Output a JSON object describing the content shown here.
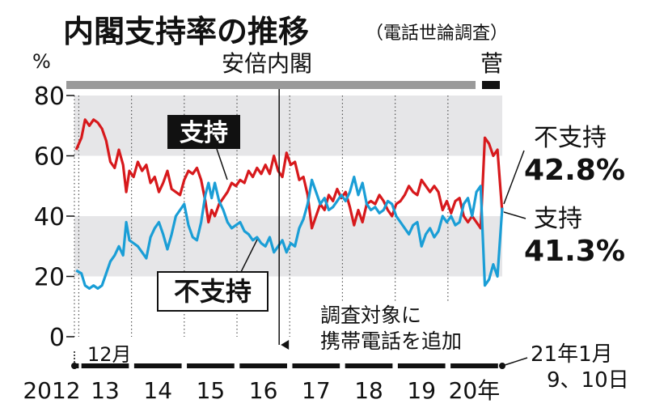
{
  "header": {
    "title": "内閣支持率の推移",
    "subtitle": "（電話世論調査）"
  },
  "chart_data": {
    "type": "line",
    "title": "内閣支持率の推移",
    "subtitle": "（電話世論調査）",
    "ylabel": "%",
    "ylim": [
      0,
      80
    ],
    "yticks": [
      0,
      20,
      40,
      60,
      80
    ],
    "xlim": [
      2012.917,
      2021.03
    ],
    "x_tick_labels": [
      {
        "x": 2012.917,
        "label": "2012"
      },
      {
        "x": 2013.5,
        "label": "13"
      },
      {
        "x": 2014.5,
        "label": "14"
      },
      {
        "x": 2015.5,
        "label": "15"
      },
      {
        "x": 2016.5,
        "label": "16"
      },
      {
        "x": 2017.5,
        "label": "17"
      },
      {
        "x": 2018.5,
        "label": "18"
      },
      {
        "x": 2019.5,
        "label": "19"
      },
      {
        "x": 2020.5,
        "label": "20年"
      }
    ],
    "start_note": "12月",
    "end_note": "21年1月\n9、10日",
    "eras": [
      {
        "label": "安倍内閣",
        "from": 2012.917,
        "to": 2020.7
      },
      {
        "label": "菅",
        "from": 2020.72,
        "to": 2021.03
      }
    ],
    "annotation": "調査対象に\n携帯電話を追加",
    "annotation_x": 2016.8,
    "series": [
      {
        "name": "支持",
        "color": "#d7191c",
        "end_value_label": "41.3%",
        "points": [
          [
            2012.95,
            62
          ],
          [
            2013.05,
            66
          ],
          [
            2013.12,
            72
          ],
          [
            2013.2,
            70
          ],
          [
            2013.28,
            72
          ],
          [
            2013.36,
            71
          ],
          [
            2013.44,
            69
          ],
          [
            2013.52,
            65
          ],
          [
            2013.6,
            58
          ],
          [
            2013.68,
            56
          ],
          [
            2013.76,
            62
          ],
          [
            2013.84,
            57
          ],
          [
            2013.9,
            48
          ],
          [
            2013.96,
            55
          ],
          [
            2014.04,
            53
          ],
          [
            2014.12,
            58
          ],
          [
            2014.2,
            55
          ],
          [
            2014.28,
            57
          ],
          [
            2014.36,
            51
          ],
          [
            2014.44,
            53
          ],
          [
            2014.52,
            48
          ],
          [
            2014.6,
            51
          ],
          [
            2014.68,
            55
          ],
          [
            2014.76,
            49
          ],
          [
            2014.84,
            48
          ],
          [
            2014.92,
            47
          ],
          [
            2015.0,
            52
          ],
          [
            2015.08,
            55
          ],
          [
            2015.16,
            54
          ],
          [
            2015.24,
            56
          ],
          [
            2015.32,
            52
          ],
          [
            2015.4,
            45
          ],
          [
            2015.46,
            38
          ],
          [
            2015.52,
            42
          ],
          [
            2015.58,
            40
          ],
          [
            2015.66,
            44
          ],
          [
            2015.74,
            46
          ],
          [
            2015.82,
            48
          ],
          [
            2015.9,
            51
          ],
          [
            2015.98,
            50
          ],
          [
            2016.06,
            52
          ],
          [
            2016.14,
            51
          ],
          [
            2016.22,
            55
          ],
          [
            2016.3,
            53
          ],
          [
            2016.38,
            56
          ],
          [
            2016.46,
            54
          ],
          [
            2016.54,
            57
          ],
          [
            2016.62,
            54
          ],
          [
            2016.7,
            60
          ],
          [
            2016.78,
            55
          ],
          [
            2016.86,
            53
          ],
          [
            2016.94,
            61
          ],
          [
            2017.02,
            57
          ],
          [
            2017.1,
            58
          ],
          [
            2017.18,
            52
          ],
          [
            2017.26,
            53
          ],
          [
            2017.34,
            47
          ],
          [
            2017.42,
            36
          ],
          [
            2017.5,
            40
          ],
          [
            2017.58,
            44
          ],
          [
            2017.66,
            42
          ],
          [
            2017.74,
            47
          ],
          [
            2017.82,
            45
          ],
          [
            2017.9,
            49
          ],
          [
            2017.98,
            46
          ],
          [
            2018.06,
            48
          ],
          [
            2018.14,
            43
          ],
          [
            2018.22,
            37
          ],
          [
            2018.3,
            42
          ],
          [
            2018.38,
            38
          ],
          [
            2018.46,
            44
          ],
          [
            2018.54,
            45
          ],
          [
            2018.62,
            44
          ],
          [
            2018.7,
            47
          ],
          [
            2018.78,
            45
          ],
          [
            2018.86,
            42
          ],
          [
            2018.94,
            40
          ],
          [
            2019.02,
            44
          ],
          [
            2019.1,
            45
          ],
          [
            2019.18,
            47
          ],
          [
            2019.26,
            50
          ],
          [
            2019.34,
            48
          ],
          [
            2019.42,
            47
          ],
          [
            2019.5,
            52
          ],
          [
            2019.58,
            50
          ],
          [
            2019.66,
            48
          ],
          [
            2019.74,
            50
          ],
          [
            2019.82,
            48
          ],
          [
            2019.9,
            42
          ],
          [
            2019.98,
            45
          ],
          [
            2020.06,
            41
          ],
          [
            2020.14,
            45
          ],
          [
            2020.22,
            46
          ],
          [
            2020.3,
            40
          ],
          [
            2020.38,
            38
          ],
          [
            2020.46,
            40
          ],
          [
            2020.54,
            38
          ],
          [
            2020.62,
            36
          ],
          [
            2020.7,
            66
          ],
          [
            2020.78,
            64
          ],
          [
            2020.86,
            60
          ],
          [
            2020.94,
            62
          ],
          [
            2021.03,
            41.3
          ]
        ]
      },
      {
        "name": "不支持",
        "color": "#1a9ed6",
        "end_value_label": "42.8%",
        "points": [
          [
            2012.95,
            22
          ],
          [
            2013.05,
            21
          ],
          [
            2013.12,
            17
          ],
          [
            2013.2,
            16
          ],
          [
            2013.28,
            17
          ],
          [
            2013.36,
            16
          ],
          [
            2013.44,
            17
          ],
          [
            2013.52,
            21
          ],
          [
            2013.6,
            25
          ],
          [
            2013.68,
            27
          ],
          [
            2013.76,
            30
          ],
          [
            2013.84,
            27
          ],
          [
            2013.9,
            38
          ],
          [
            2013.96,
            32
          ],
          [
            2014.04,
            31
          ],
          [
            2014.12,
            30
          ],
          [
            2014.2,
            28
          ],
          [
            2014.28,
            26
          ],
          [
            2014.36,
            33
          ],
          [
            2014.44,
            36
          ],
          [
            2014.52,
            38
          ],
          [
            2014.6,
            34
          ],
          [
            2014.68,
            29
          ],
          [
            2014.76,
            34
          ],
          [
            2014.84,
            40
          ],
          [
            2014.92,
            42
          ],
          [
            2015.0,
            44
          ],
          [
            2015.08,
            37
          ],
          [
            2015.16,
            33
          ],
          [
            2015.24,
            32
          ],
          [
            2015.32,
            38
          ],
          [
            2015.4,
            47
          ],
          [
            2015.46,
            51
          ],
          [
            2015.52,
            46
          ],
          [
            2015.58,
            51
          ],
          [
            2015.66,
            45
          ],
          [
            2015.74,
            42
          ],
          [
            2015.82,
            38
          ],
          [
            2015.9,
            36
          ],
          [
            2015.98,
            37
          ],
          [
            2016.06,
            38
          ],
          [
            2016.14,
            35
          ],
          [
            2016.22,
            34
          ],
          [
            2016.3,
            32
          ],
          [
            2016.38,
            33
          ],
          [
            2016.46,
            31
          ],
          [
            2016.54,
            30
          ],
          [
            2016.62,
            33
          ],
          [
            2016.7,
            28
          ],
          [
            2016.78,
            30
          ],
          [
            2016.86,
            32
          ],
          [
            2016.94,
            28
          ],
          [
            2017.02,
            31
          ],
          [
            2017.1,
            30
          ],
          [
            2017.18,
            36
          ],
          [
            2017.26,
            39
          ],
          [
            2017.34,
            44
          ],
          [
            2017.42,
            52
          ],
          [
            2017.5,
            48
          ],
          [
            2017.58,
            44
          ],
          [
            2017.66,
            46
          ],
          [
            2017.74,
            42
          ],
          [
            2017.82,
            43
          ],
          [
            2017.9,
            45
          ],
          [
            2017.98,
            47
          ],
          [
            2018.06,
            45
          ],
          [
            2018.14,
            48
          ],
          [
            2018.22,
            53
          ],
          [
            2018.3,
            47
          ],
          [
            2018.38,
            51
          ],
          [
            2018.46,
            44
          ],
          [
            2018.54,
            42
          ],
          [
            2018.62,
            43
          ],
          [
            2018.7,
            41
          ],
          [
            2018.78,
            42
          ],
          [
            2018.86,
            45
          ],
          [
            2018.94,
            44
          ],
          [
            2019.02,
            40
          ],
          [
            2019.1,
            38
          ],
          [
            2019.18,
            36
          ],
          [
            2019.26,
            34
          ],
          [
            2019.34,
            37
          ],
          [
            2019.42,
            38
          ],
          [
            2019.5,
            30
          ],
          [
            2019.58,
            34
          ],
          [
            2019.66,
            36
          ],
          [
            2019.74,
            33
          ],
          [
            2019.82,
            35
          ],
          [
            2019.9,
            40
          ],
          [
            2019.98,
            38
          ],
          [
            2020.06,
            40
          ],
          [
            2020.14,
            37
          ],
          [
            2020.22,
            38
          ],
          [
            2020.3,
            44
          ],
          [
            2020.38,
            46
          ],
          [
            2020.46,
            40
          ],
          [
            2020.54,
            48
          ],
          [
            2020.62,
            50
          ],
          [
            2020.7,
            17
          ],
          [
            2020.78,
            19
          ],
          [
            2020.86,
            24
          ],
          [
            2020.94,
            20
          ],
          [
            2021.03,
            42.8
          ]
        ]
      }
    ]
  },
  "labels": {
    "support_tag": "支持",
    "disapprove_tag": "不支持",
    "right_disapprove_label": "不支持",
    "right_disapprove_value": "42.8%",
    "right_support_label": "支持",
    "right_support_value": "41.3%"
  },
  "colors": {
    "support": "#d7191c",
    "disapprove": "#1a9ed6",
    "band": "#e6e6e8",
    "era_bar": "#9a9a9a"
  }
}
